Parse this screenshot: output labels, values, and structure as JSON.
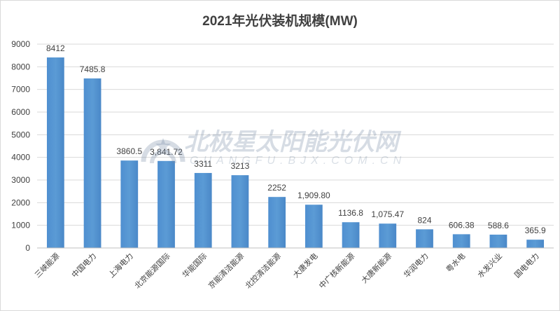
{
  "chart_data": {
    "type": "bar",
    "title": "2021年光伏装机规模(MW)",
    "categories": [
      "三峡能源",
      "中国电力",
      "上海电力",
      "北京能源国际",
      "华能国际",
      "京能清洁能源",
      "北控清洁能源",
      "大唐发电",
      "中广核新能源",
      "大唐新能源",
      "华润电力",
      "粤水电",
      "水发兴业",
      "国电电力"
    ],
    "values": [
      8412,
      7485.8,
      3860.5,
      3841.72,
      3311,
      3213,
      2252,
      1909.8,
      1136.8,
      1075.47,
      824,
      606.38,
      588.6,
      365.9
    ],
    "value_labels": [
      "8412",
      "7485.8",
      "3860.5",
      "3,841.72",
      "3311",
      "3213",
      "2252",
      "1,909.80",
      "1136.8",
      "1,075.47",
      "824",
      "606.38",
      "588.6",
      "365.9"
    ],
    "ylim": [
      0,
      9000
    ],
    "yticks": [
      0,
      1000,
      2000,
      3000,
      4000,
      5000,
      6000,
      7000,
      8000,
      9000
    ],
    "grid": true,
    "bar_color": "#5b9bd5"
  },
  "watermark": {
    "main": "北极星太阳能光伏网",
    "sub": "GUANGFU.BJX.COM.CN"
  }
}
